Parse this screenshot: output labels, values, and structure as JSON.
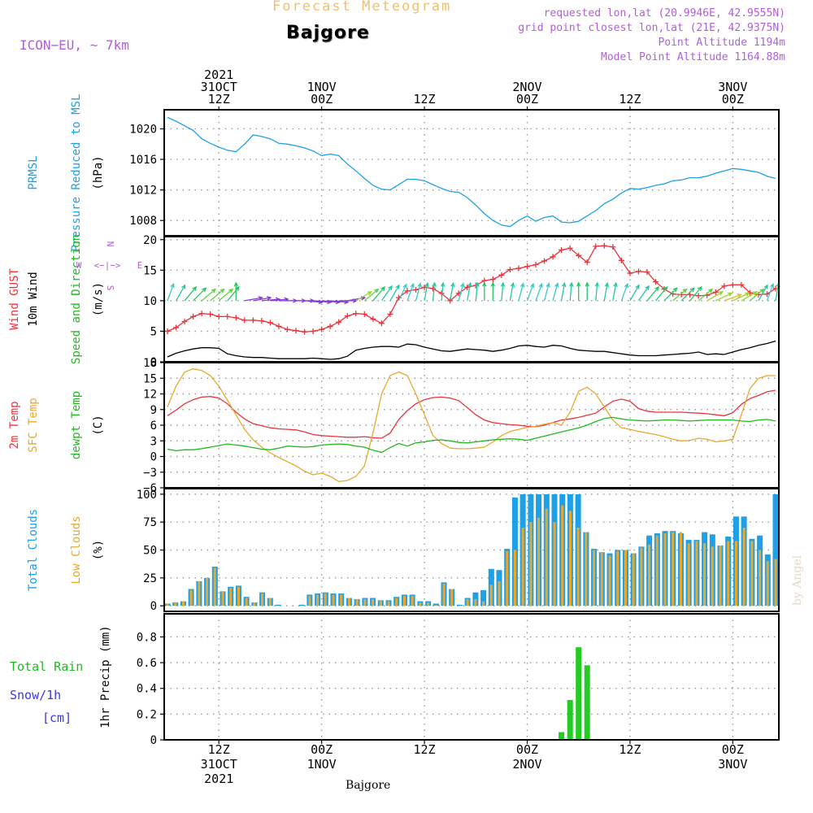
{
  "header": {
    "title": "Forecast Meteogram",
    "location": "Bajgore",
    "model": "ICON−EU, ~ 7km",
    "info": [
      "requested lon,lat (20.9946E, 42.9555N)",
      "grid point closest lon,lat (21E, 42.9375N)",
      "Point Altitude 1194m",
      "Model Point Altitude 1164.88m"
    ],
    "footer_label": "Bajgore",
    "watermark": "by Angel"
  },
  "axis_time": {
    "start_hour": 0,
    "end_hour": 71,
    "top_labels": [
      {
        "t": 6,
        "lines": [
          "2021",
          "31OCT",
          "12Z"
        ]
      },
      {
        "t": 18,
        "lines": [
          "1NOV",
          "00Z"
        ]
      },
      {
        "t": 30,
        "lines": [
          "12Z"
        ]
      },
      {
        "t": 42,
        "lines": [
          "2NOV",
          "00Z"
        ]
      },
      {
        "t": 54,
        "lines": [
          "12Z"
        ]
      },
      {
        "t": 66,
        "lines": [
          "3NOV",
          "00Z"
        ]
      }
    ],
    "bottom_labels": [
      {
        "t": 6,
        "lines": [
          "12Z",
          "31OCT",
          "2021"
        ]
      },
      {
        "t": 18,
        "lines": [
          "00Z",
          "1NOV"
        ]
      },
      {
        "t": 30,
        "lines": [
          "12Z"
        ]
      },
      {
        "t": 42,
        "lines": [
          "00Z",
          "2NOV"
        ]
      },
      {
        "t": 54,
        "lines": [
          "12Z"
        ]
      },
      {
        "t": 66,
        "lines": [
          "00Z",
          "3NOV"
        ]
      }
    ]
  },
  "chart_data": [
    {
      "type": "line",
      "panel": "pressure",
      "ylabels": [
        {
          "text": "PRMSL",
          "color": "#1ea0e6"
        },
        {
          "text": "Pressure Reduced to MSL",
          "color": "#1ea0e6"
        },
        {
          "text": "(hPa)",
          "color": "#000000"
        }
      ],
      "ylim": [
        1006,
        1022.5
      ],
      "yticks": [
        1008,
        1012,
        1016,
        1020
      ],
      "series": [
        {
          "color": "#1ea0e6",
          "x": [
            0,
            1,
            2,
            3,
            4,
            5,
            6,
            7,
            8,
            9,
            10,
            11,
            12,
            13,
            14,
            15,
            16,
            17,
            18,
            19,
            20,
            21,
            22,
            23,
            24,
            25,
            26,
            27,
            28,
            29,
            30,
            31,
            32,
            33,
            34,
            35,
            36,
            37,
            38,
            39,
            40,
            41,
            42,
            43,
            44,
            45,
            46,
            47,
            48,
            49,
            50,
            51,
            52,
            53,
            54,
            55,
            56,
            57,
            58,
            59,
            60,
            61,
            62,
            63,
            64,
            65,
            66,
            67,
            68,
            69,
            70,
            71
          ],
          "values": [
            1021.5,
            1021.0,
            1020.4,
            1019.8,
            1018.7,
            1018.1,
            1017.6,
            1017.2,
            1017.0,
            1018.0,
            1019.2,
            1019.0,
            1018.7,
            1018.1,
            1018.0,
            1017.8,
            1017.5,
            1017.1,
            1016.5,
            1016.7,
            1016.5,
            1015.4,
            1014.5,
            1013.5,
            1012.6,
            1012.1,
            1012.0,
            1012.7,
            1013.4,
            1013.4,
            1013.2,
            1012.7,
            1012.2,
            1011.8,
            1011.7,
            1011.0,
            1010.0,
            1008.9,
            1008.0,
            1007.4,
            1007.2,
            1008.0,
            1008.6,
            1007.9,
            1008.4,
            1008.6,
            1007.8,
            1007.7,
            1007.9,
            1008.6,
            1009.3,
            1010.2,
            1010.8,
            1011.6,
            1012.2,
            1012.1,
            1012.3,
            1012.6,
            1012.8,
            1013.2,
            1013.3,
            1013.6,
            1013.6,
            1013.8,
            1014.2,
            1014.5,
            1014.8,
            1014.7,
            1014.5,
            1014.3,
            1013.8,
            1013.5
          ]
        }
      ],
      "grid": true
    },
    {
      "type": "line",
      "panel": "wind",
      "ylabels": [
        {
          "text": "Wind GUST",
          "color": "#e8343c"
        },
        {
          "text": "10m Wind",
          "color": "#000000"
        },
        {
          "text": "Speed and Direction",
          "color": "#22b822"
        },
        {
          "text": "(m/s)",
          "color": "#000000"
        }
      ],
      "compass": {
        "n": "N",
        "e": "E",
        "s": "S",
        "w": "W",
        "color": "#b05fd6"
      },
      "ylim": [
        0,
        20.5
      ],
      "yticks": [
        0,
        5,
        10,
        15,
        20
      ],
      "series": [
        {
          "name": "Wind GUST",
          "color": "#e8343c",
          "marker": "+",
          "values": [
            5.0,
            5.6,
            6.6,
            7.4,
            7.9,
            7.8,
            7.4,
            7.4,
            7.2,
            6.8,
            6.8,
            6.7,
            6.4,
            5.8,
            5.3,
            5.1,
            4.9,
            5.0,
            5.3,
            5.8,
            6.5,
            7.5,
            7.9,
            7.8,
            7.0,
            6.3,
            7.8,
            10.5,
            11.6,
            11.8,
            12.2,
            12.0,
            11.2,
            10.0,
            11.2,
            12.2,
            12.5,
            13.3,
            13.5,
            14.2,
            15.1,
            15.3,
            15.6,
            15.9,
            16.5,
            17.2,
            18.3,
            18.6,
            17.4,
            16.3,
            18.9,
            19.0,
            18.8,
            16.6,
            14.5,
            14.8,
            14.7,
            13.1,
            11.9,
            11.1,
            11.0,
            11.0,
            10.8,
            10.9,
            11.4,
            12.4,
            12.6,
            12.6,
            11.3,
            11.0,
            11.1,
            12.0
          ]
        },
        {
          "name": "10m Wind",
          "color": "#000000",
          "values": [
            0.8,
            1.4,
            1.8,
            2.1,
            2.3,
            2.3,
            2.2,
            1.3,
            1.0,
            0.8,
            0.7,
            0.7,
            0.6,
            0.5,
            0.5,
            0.5,
            0.5,
            0.6,
            0.5,
            0.4,
            0.5,
            0.9,
            1.9,
            2.2,
            2.4,
            2.5,
            2.5,
            2.4,
            2.9,
            2.8,
            2.4,
            2.1,
            1.8,
            1.7,
            1.9,
            2.1,
            2.0,
            1.9,
            1.7,
            1.9,
            2.2,
            2.6,
            2.7,
            2.5,
            2.4,
            2.7,
            2.6,
            2.2,
            1.9,
            1.8,
            1.7,
            1.7,
            1.5,
            1.3,
            1.1,
            1.0,
            1.0,
            1.0,
            1.1,
            1.2,
            1.3,
            1.4,
            1.6,
            1.2,
            1.3,
            1.2,
            1.6,
            2.0,
            2.3,
            2.7,
            3.0,
            3.4
          ]
        },
        {
          "name": "Speed and Direction",
          "type": "arrows",
          "baseline": 10,
          "directions_deg": [
            200,
            210,
            220,
            225,
            230,
            230,
            230,
            220,
            180,
            260,
            260,
            265,
            265,
            270,
            270,
            270,
            275,
            275,
            275,
            275,
            270,
            260,
            240,
            230,
            220,
            215,
            210,
            205,
            200,
            195,
            190,
            185,
            185,
            190,
            195,
            190,
            185,
            180,
            180,
            185,
            190,
            195,
            200,
            200,
            195,
            195,
            190,
            185,
            180,
            180,
            185,
            190,
            190,
            200,
            210,
            215,
            220,
            220,
            225,
            230,
            225,
            220,
            230,
            240,
            245,
            250,
            245,
            240,
            230,
            210,
            200,
            190
          ]
        }
      ],
      "grid": true
    },
    {
      "type": "line",
      "panel": "temperature",
      "ylabels": [
        {
          "text": "2m Temp",
          "color": "#e8343c"
        },
        {
          "text": "SFC Temp",
          "color": "#e8a830"
        },
        {
          "text": "dewpt Temp",
          "color": "#22b822"
        },
        {
          "text": "(C)",
          "color": "#000000"
        }
      ],
      "ylim": [
        -6,
        18
      ],
      "yticks": [
        -6,
        -3,
        0,
        3,
        6,
        9,
        12,
        15,
        18
      ],
      "series": [
        {
          "name": "2m Temp",
          "color": "#e8343c",
          "values": [
            7.8,
            8.9,
            10.1,
            10.9,
            11.4,
            11.5,
            11.2,
            10.1,
            8.5,
            7.2,
            6.3,
            5.9,
            5.5,
            5.3,
            5.2,
            5.1,
            4.7,
            4.2,
            4.0,
            3.9,
            3.8,
            3.7,
            3.7,
            3.8,
            3.6,
            3.5,
            4.5,
            7.1,
            8.8,
            10.1,
            10.9,
            11.3,
            11.4,
            11.2,
            10.7,
            9.4,
            8.0,
            7.0,
            6.5,
            6.3,
            6.1,
            6.0,
            5.8,
            5.7,
            6.0,
            6.5,
            7.0,
            7.2,
            7.5,
            7.9,
            8.3,
            9.5,
            10.6,
            11.0,
            10.6,
            9.2,
            8.7,
            8.5,
            8.5,
            8.5,
            8.5,
            8.4,
            8.3,
            8.2,
            8.0,
            7.8,
            8.4,
            10.0,
            11.1,
            11.7,
            12.4,
            12.7
          ]
        },
        {
          "name": "SFC Temp",
          "color": "#e8a830",
          "values": [
            9.5,
            13.5,
            16.2,
            16.8,
            16.5,
            15.5,
            13.5,
            10.8,
            8.0,
            5.2,
            3.2,
            1.8,
            0.7,
            -0.2,
            -1.0,
            -1.8,
            -2.8,
            -3.5,
            -3.2,
            -3.8,
            -4.8,
            -4.6,
            -3.8,
            -1.8,
            4.5,
            12.0,
            15.5,
            16.2,
            15.5,
            12.0,
            8.0,
            4.0,
            2.5,
            1.6,
            1.5,
            1.5,
            1.6,
            1.8,
            2.8,
            4.0,
            4.8,
            5.2,
            5.6,
            5.8,
            6.2,
            6.5,
            6.0,
            8.5,
            12.5,
            13.3,
            12.0,
            9.5,
            7.0,
            5.5,
            5.2,
            4.8,
            4.5,
            4.2,
            3.8,
            3.3,
            3.0,
            3.1,
            3.5,
            3.3,
            2.8,
            3.0,
            3.3,
            8.0,
            13.0,
            15.0,
            15.5,
            15.5
          ]
        },
        {
          "name": "dewpt Temp",
          "color": "#22b822",
          "values": [
            1.4,
            1.1,
            1.3,
            1.3,
            1.5,
            1.8,
            2.1,
            2.4,
            2.2,
            2.0,
            1.7,
            1.4,
            1.3,
            1.6,
            2.0,
            1.9,
            1.8,
            1.9,
            2.2,
            2.3,
            2.4,
            2.3,
            2.0,
            1.8,
            1.2,
            0.8,
            1.7,
            2.5,
            2.0,
            2.6,
            2.8,
            3.1,
            3.2,
            3.0,
            2.7,
            2.6,
            2.8,
            3.0,
            3.2,
            3.3,
            3.4,
            3.3,
            3.1,
            3.5,
            3.9,
            4.3,
            4.7,
            5.1,
            5.5,
            6.0,
            6.7,
            7.3,
            7.5,
            7.2,
            7.0,
            6.9,
            6.8,
            6.9,
            7.0,
            7.0,
            6.9,
            6.8,
            6.9,
            7.0,
            7.0,
            7.0,
            7.0,
            6.8,
            6.7,
            7.0,
            7.1,
            6.8
          ]
        }
      ],
      "grid": true
    },
    {
      "type": "bar",
      "panel": "clouds",
      "ylabels": [
        {
          "text": "Total Clouds",
          "color": "#1ea0e6"
        },
        {
          "text": "Low Clouds",
          "color": "#e8a830"
        },
        {
          "text": "(%)",
          "color": "#000000"
        }
      ],
      "ylim": [
        -5,
        105
      ],
      "yticks": [
        0,
        25,
        50,
        75,
        100
      ],
      "series": [
        {
          "name": "Total Clouds",
          "color": "#1ea0e6",
          "values": [
            2,
            3,
            4,
            15,
            22,
            25,
            35,
            13,
            17,
            18,
            8,
            3,
            12,
            7,
            1,
            0,
            0,
            1,
            10,
            11,
            12,
            11,
            11,
            7,
            6,
            7,
            7,
            5,
            5,
            8,
            10,
            10,
            4,
            4,
            2,
            21,
            15,
            1,
            7,
            12,
            14,
            33,
            32,
            51,
            97,
            100,
            100,
            100,
            100,
            100,
            100,
            100,
            100,
            66,
            51,
            48,
            47,
            50,
            50,
            47,
            53,
            63,
            65,
            67,
            67,
            65,
            59,
            59,
            66,
            64,
            54,
            62,
            80,
            80,
            60,
            63,
            46,
            100
          ]
        },
        {
          "name": "Low Clouds",
          "color": "#e8a830",
          "values": [
            2,
            3,
            4,
            14,
            22,
            25,
            34,
            13,
            16,
            17,
            7,
            3,
            11,
            7,
            0,
            0,
            0,
            0,
            9,
            10,
            11,
            10,
            10,
            7,
            6,
            6,
            6,
            5,
            4,
            7,
            9,
            9,
            3,
            3,
            1,
            20,
            15,
            0,
            6,
            6,
            4,
            19,
            22,
            49,
            50,
            70,
            75,
            79,
            87,
            75,
            90,
            85,
            70,
            66,
            50,
            48,
            45,
            49,
            50,
            47,
            52,
            55,
            63,
            65,
            66,
            66,
            56,
            58,
            56,
            53,
            54,
            58,
            58,
            70,
            58,
            50,
            40,
            42
          ]
        }
      ],
      "grid": true
    },
    {
      "type": "bar",
      "panel": "precip",
      "ylabels": [
        {
          "text": "1hr Precip (mm)",
          "color": "#000000"
        }
      ],
      "side_labels": [
        {
          "text": "Total  Rain",
          "color": "#22b822"
        },
        {
          "text": "Snow/1h",
          "color": "#3a3ae0"
        },
        {
          "text": "[cm]",
          "color": "#3a3ae0"
        }
      ],
      "ylim": [
        0,
        0.98
      ],
      "yticks": [
        0,
        0.2,
        0.4,
        0.6,
        0.8
      ],
      "series": [
        {
          "name": "Total Rain",
          "color": "#22cc22",
          "bars": [
            {
              "t": 46,
              "v": 0.06
            },
            {
              "t": 47,
              "v": 0.31
            },
            {
              "t": 48,
              "v": 0.72
            },
            {
              "t": 49,
              "v": 0.58
            }
          ]
        }
      ],
      "grid": true
    }
  ]
}
